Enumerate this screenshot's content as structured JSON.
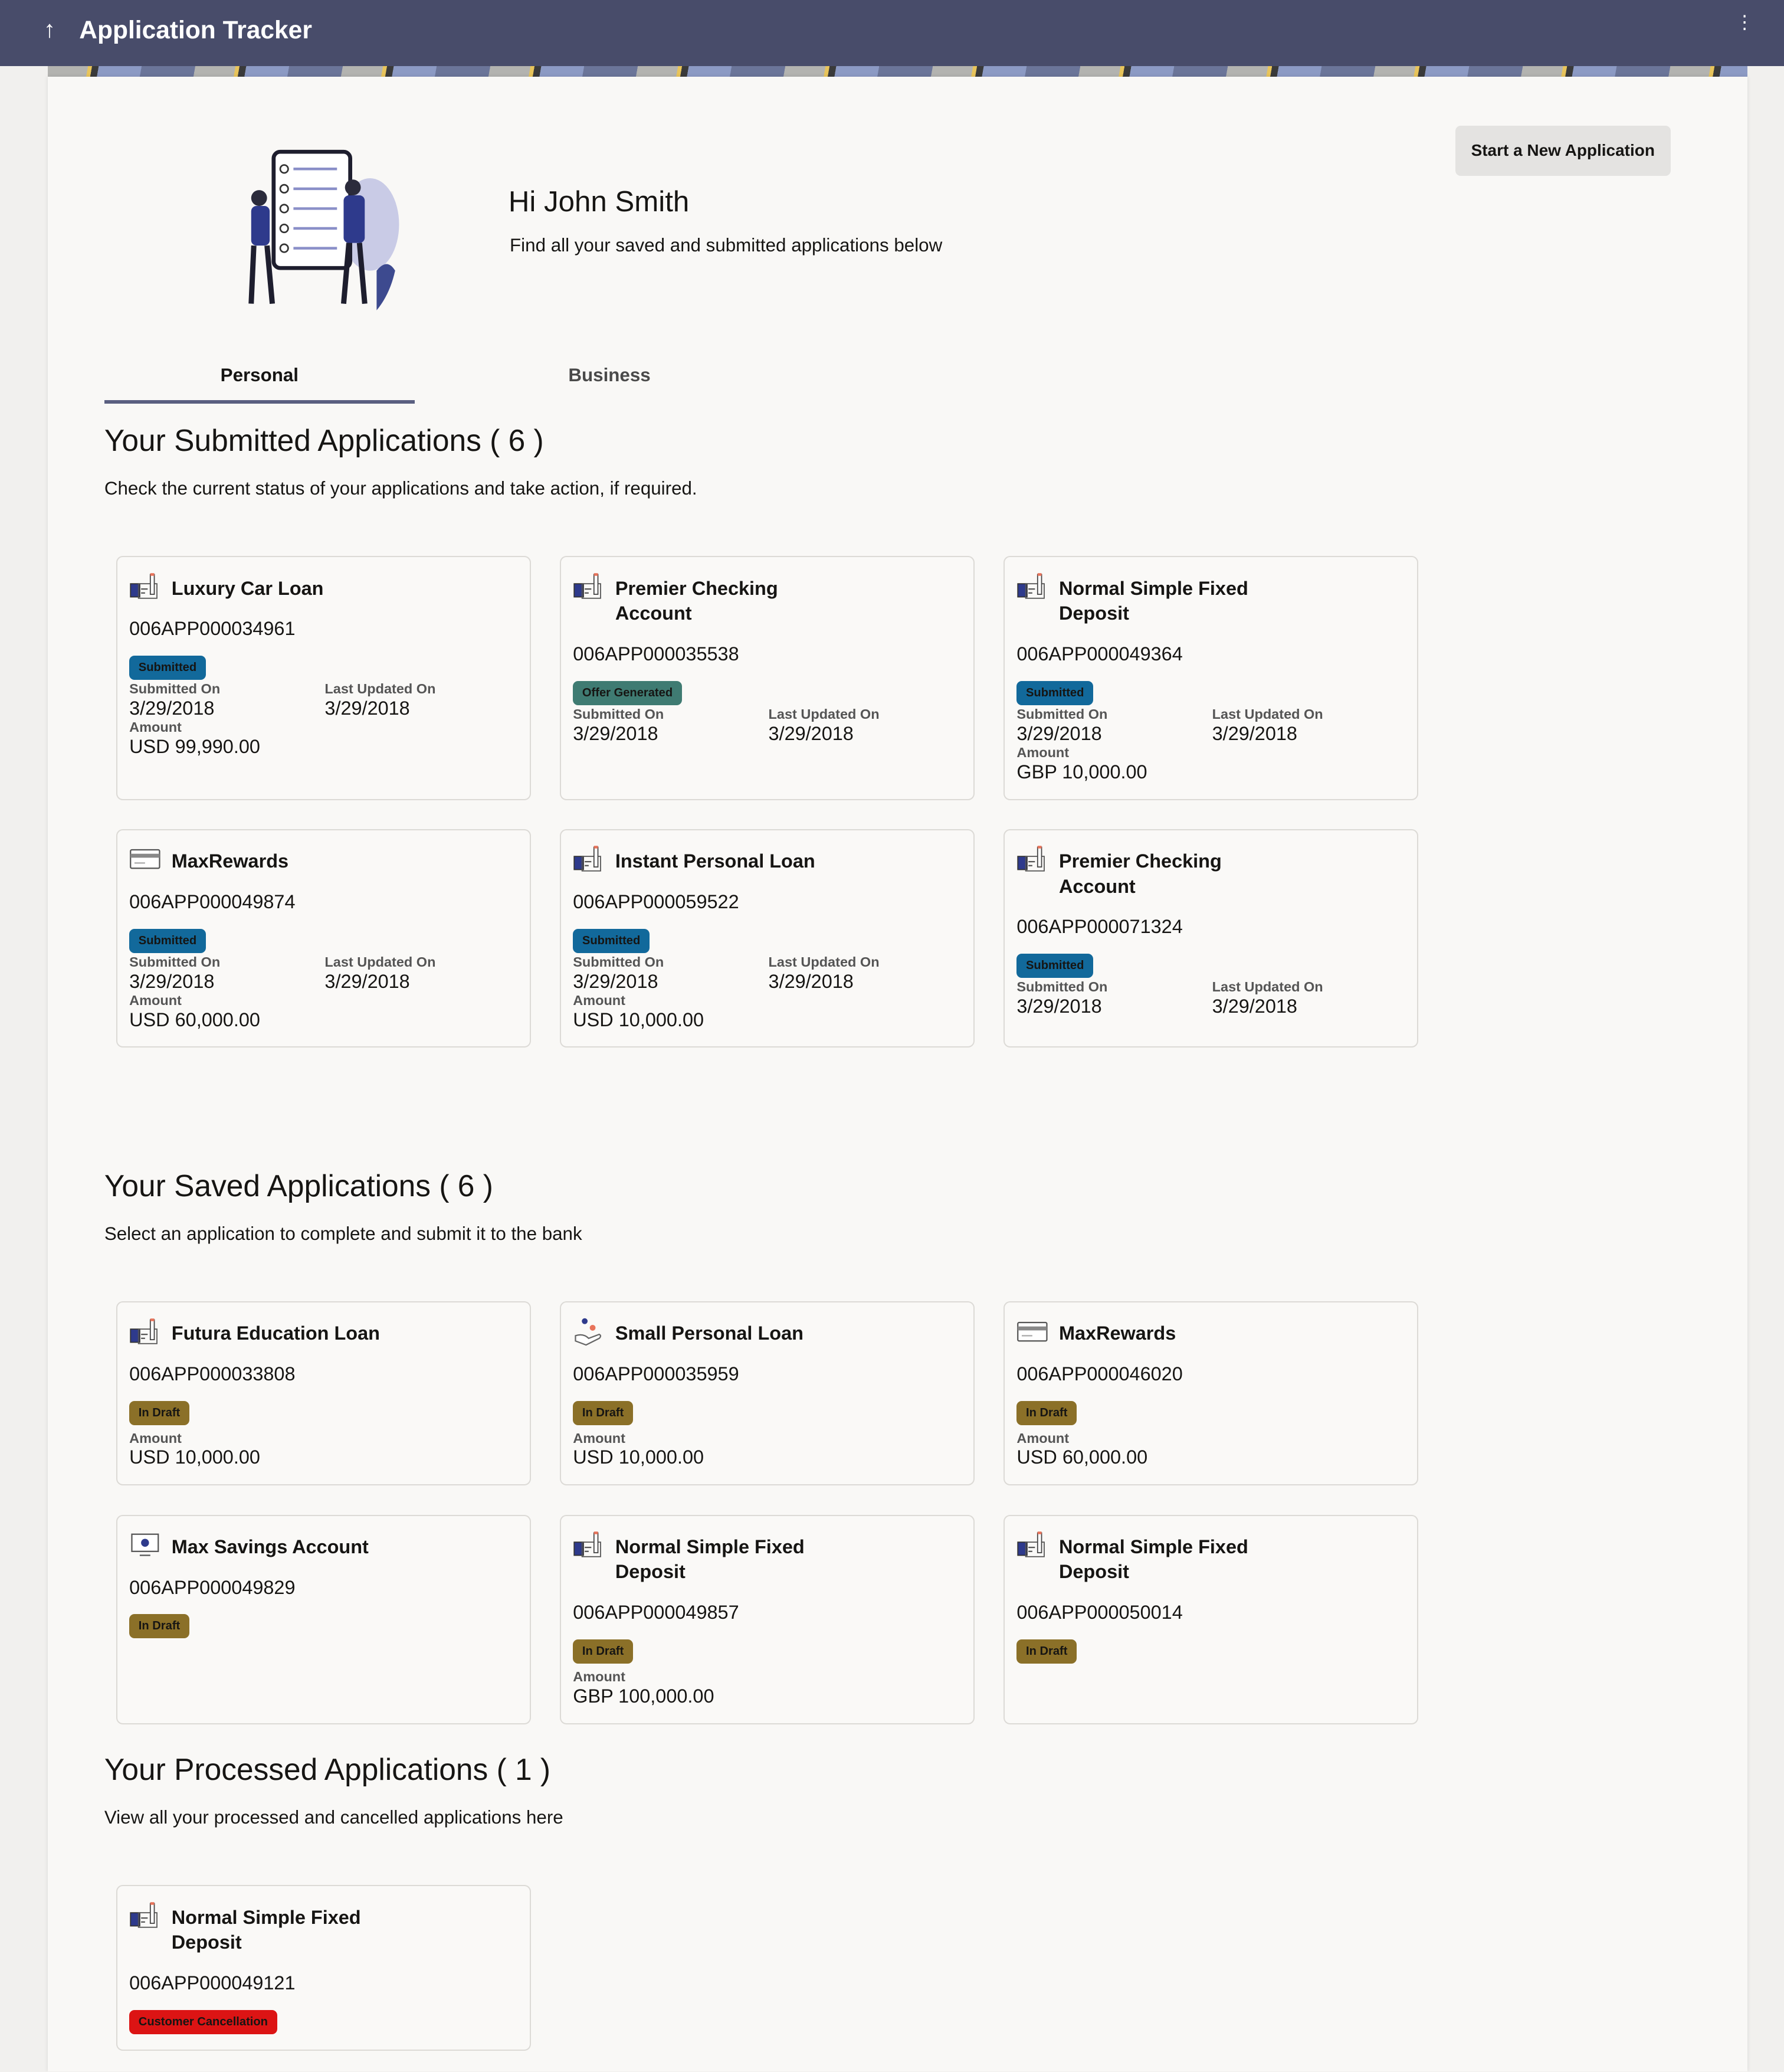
{
  "header": {
    "title": "Application Tracker",
    "back_icon": "arrow-up-icon",
    "menu_icon": "kebab-menu-icon"
  },
  "greeting": {
    "title": "Hi John Smith",
    "subtitle": "Find all your saved and submitted applications below"
  },
  "actions": {
    "new_application": "Start a New Application"
  },
  "tabs": [
    {
      "label": "Personal",
      "active": true
    },
    {
      "label": "Business",
      "active": false
    }
  ],
  "labels": {
    "submitted_on": "Submitted On",
    "last_updated_on": "Last Updated On",
    "amount": "Amount"
  },
  "colors": {
    "submitted": "#12699b",
    "offer_generated": "#3f7b72",
    "in_draft": "#8b7028",
    "customer_cancellation": "#dc1414",
    "header": "#484c6a"
  },
  "submitted": {
    "title": "Your Submitted Applications ( 6 )",
    "subtitle": "Check the current status of your applications and take action, if required.",
    "cards": [
      {
        "icon": "loan-document-icon",
        "name": "Luxury Car Loan",
        "id": "006APP000034961",
        "status": "Submitted",
        "status_key": "submitted",
        "submitted_on": "3/29/2018",
        "last_updated_on": "3/29/2018",
        "amount": "USD 99,990.00"
      },
      {
        "icon": "loan-document-icon",
        "name": "Premier Checking Account",
        "id": "006APP000035538",
        "status": "Offer Generated",
        "status_key": "offer_generated",
        "submitted_on": "3/29/2018",
        "last_updated_on": "3/29/2018"
      },
      {
        "icon": "loan-document-icon",
        "name": "Normal Simple Fixed Deposit",
        "id": "006APP000049364",
        "status": "Submitted",
        "status_key": "submitted",
        "submitted_on": "3/29/2018",
        "last_updated_on": "3/29/2018",
        "amount": "GBP 10,000.00"
      },
      {
        "icon": "credit-card-icon",
        "name": "MaxRewards",
        "id": "006APP000049874",
        "status": "Submitted",
        "status_key": "submitted",
        "submitted_on": "3/29/2018",
        "last_updated_on": "3/29/2018",
        "amount": "USD 60,000.00"
      },
      {
        "icon": "loan-document-icon",
        "name": "Instant Personal Loan",
        "id": "006APP000059522",
        "status": "Submitted",
        "status_key": "submitted",
        "submitted_on": "3/29/2018",
        "last_updated_on": "3/29/2018",
        "amount": "USD 10,000.00"
      },
      {
        "icon": "loan-document-icon",
        "name": "Premier Checking Account",
        "id": "006APP000071324",
        "status": "Submitted",
        "status_key": "submitted",
        "submitted_on": "3/29/2018",
        "last_updated_on": "3/29/2018"
      }
    ]
  },
  "saved": {
    "title": "Your Saved Applications (  6  )",
    "subtitle": "Select an application to complete and submit it to the bank",
    "cards": [
      {
        "icon": "loan-document-icon",
        "name": "Futura Education Loan",
        "id": "006APP000033808",
        "status": "In Draft",
        "status_key": "in_draft",
        "amount": "USD 10,000.00"
      },
      {
        "icon": "hand-coins-icon",
        "name": "Small Personal Loan",
        "id": "006APP000035959",
        "status": "In Draft",
        "status_key": "in_draft",
        "amount": "USD 10,000.00"
      },
      {
        "icon": "credit-card-icon",
        "name": "MaxRewards",
        "id": "006APP000046020",
        "status": "In Draft",
        "status_key": "in_draft",
        "amount": "USD 60,000.00"
      },
      {
        "icon": "savings-screen-icon",
        "name": "Max Savings Account",
        "id": "006APP000049829",
        "status": "In Draft",
        "status_key": "in_draft"
      },
      {
        "icon": "loan-document-icon",
        "name": "Normal Simple Fixed Deposit",
        "id": "006APP000049857",
        "status": "In Draft",
        "status_key": "in_draft",
        "amount": "GBP 100,000.00"
      },
      {
        "icon": "loan-document-icon",
        "name": "Normal Simple Fixed Deposit",
        "id": "006APP000050014",
        "status": "In Draft",
        "status_key": "in_draft"
      }
    ]
  },
  "processed": {
    "title": "Your Processed Applications ( 1 )",
    "subtitle": "View all your processed and cancelled applications here",
    "cards": [
      {
        "icon": "loan-document-icon",
        "name": "Normal Simple Fixed Deposit",
        "id": "006APP000049121",
        "status": "Customer Cancellation",
        "status_key": "customer_cancellation"
      }
    ]
  }
}
